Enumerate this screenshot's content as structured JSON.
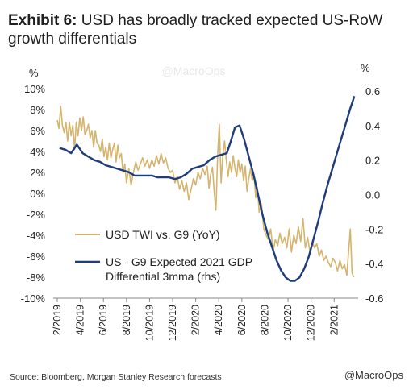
{
  "header": {
    "prefix": "Exhibit 6:",
    "title": "USD has broadly tracked expected US-RoW growth differentials"
  },
  "watermark": "@MacroOps",
  "footer": {
    "source": "Source: Bloomberg, Morgan Stanley Research forecasts",
    "handle": "@MacroOps"
  },
  "chart_data": {
    "type": "line",
    "y_left_unit": "%",
    "y_right_unit": "%",
    "y_left_ticks": [
      "10%",
      "8%",
      "6%",
      "4%",
      "2%",
      "0%",
      "-2%",
      "-4%",
      "-6%",
      "-8%",
      "-10%"
    ],
    "y_right_ticks": [
      "0.6",
      "0.4",
      "0.2",
      "0.0",
      "-0.2",
      "-0.4",
      "-0.6"
    ],
    "ylim_left": [
      -10,
      10
    ],
    "ylim_right": [
      -0.6,
      0.6
    ],
    "x_ticks": [
      "2/2019",
      "4/2019",
      "6/2019",
      "8/2019",
      "10/2019",
      "12/2019",
      "2/2020",
      "4/2020",
      "6/2020",
      "8/2020",
      "10/2020",
      "12/2020",
      "2/2021"
    ],
    "x_tick_months": [
      0,
      2,
      4,
      6,
      8,
      10,
      12,
      14,
      16,
      18,
      20,
      22,
      24
    ],
    "xlim_months": [
      0,
      25.8
    ],
    "grid": false,
    "legend_position": "bottom-left",
    "series": [
      {
        "name": "USD TWI vs. G9 (YoY)",
        "axis": "left",
        "color": "#d4b46e",
        "x_months": [
          0.0,
          0.15,
          0.3,
          0.45,
          0.6,
          0.75,
          0.9,
          1.05,
          1.2,
          1.35,
          1.5,
          1.65,
          1.8,
          1.95,
          2.1,
          2.25,
          2.4,
          2.55,
          2.7,
          2.85,
          3.0,
          3.15,
          3.3,
          3.45,
          3.6,
          3.75,
          3.9,
          4.05,
          4.2,
          4.35,
          4.5,
          4.65,
          4.8,
          4.95,
          5.1,
          5.25,
          5.4,
          5.55,
          5.7,
          5.85,
          6.0,
          6.2,
          6.4,
          6.6,
          6.8,
          7.0,
          7.2,
          7.4,
          7.6,
          7.8,
          8.0,
          8.2,
          8.4,
          8.6,
          8.8,
          9.0,
          9.2,
          9.4,
          9.6,
          9.8,
          10.0,
          10.2,
          10.4,
          10.6,
          10.8,
          11.0,
          11.2,
          11.4,
          11.6,
          11.8,
          12.0,
          12.2,
          12.4,
          12.6,
          12.8,
          13.0,
          13.15,
          13.3,
          13.45,
          13.6,
          13.75,
          13.9,
          14.05,
          14.2,
          14.35,
          14.5,
          14.65,
          14.8,
          14.95,
          15.1,
          15.25,
          15.4,
          15.55,
          15.7,
          15.85,
          16.0,
          16.15,
          16.3,
          16.45,
          16.6,
          16.75,
          16.9,
          17.05,
          17.2,
          17.35,
          17.5,
          17.7,
          17.9,
          18.1,
          18.3,
          18.5,
          18.7,
          18.9,
          19.1,
          19.3,
          19.5,
          19.7,
          19.9,
          20.1,
          20.3,
          20.5,
          20.7,
          20.9,
          21.1,
          21.3,
          21.5,
          21.7,
          21.9,
          22.1,
          22.3,
          22.5,
          22.7,
          22.9,
          23.1,
          23.3,
          23.5,
          23.7,
          23.9,
          24.1,
          24.3,
          24.5,
          24.7,
          24.9,
          25.1,
          25.25,
          25.4,
          25.55,
          25.7
        ],
        "values": [
          7.0,
          6.2,
          8.3,
          6.5,
          5.8,
          6.8,
          5.0,
          6.8,
          5.5,
          6.5,
          4.2,
          6.8,
          5.5,
          7.2,
          6.0,
          7.3,
          5.6,
          6.0,
          6.6,
          5.3,
          6.0,
          4.4,
          6.0,
          4.8,
          4.6,
          4.0,
          5.2,
          3.5,
          4.4,
          3.2,
          4.8,
          3.4,
          4.2,
          4.8,
          3.0,
          4.6,
          3.4,
          3.8,
          2.0,
          2.8,
          1.0,
          2.4,
          0.8,
          2.0,
          3.0,
          2.2,
          2.8,
          3.4,
          2.6,
          3.2,
          2.4,
          3.2,
          2.6,
          3.6,
          2.8,
          3.8,
          2.9,
          3.4,
          2.4,
          2.0,
          2.2,
          1.0,
          1.6,
          0.4,
          1.2,
          0.2,
          1.0,
          -0.6,
          0.4,
          1.4,
          0.8,
          2.0,
          1.4,
          2.4,
          1.8,
          2.6,
          0.5,
          1.8,
          2.5,
          0.2,
          -1.6,
          3.6,
          6.6,
          1.0,
          3.6,
          5.0,
          3.2,
          1.6,
          3.0,
          2.0,
          3.6,
          2.4,
          1.6,
          3.2,
          2.0,
          2.8,
          1.2,
          2.6,
          0.2,
          1.4,
          2.4,
          1.2,
          1.8,
          -0.4,
          0.6,
          -1.8,
          -1.0,
          -3.4,
          -4.0,
          -4.4,
          -3.4,
          -5.6,
          -4.4,
          -5.0,
          -3.8,
          -4.8,
          -4.2,
          -5.2,
          -3.4,
          -5.6,
          -4.0,
          -4.8,
          -3.2,
          -4.6,
          -2.4,
          -5.2,
          -4.2,
          -5.6,
          -4.6,
          -5.2,
          -4.8,
          -6.0,
          -5.4,
          -6.4,
          -6.0,
          -6.6,
          -7.0,
          -6.2,
          -6.6,
          -7.4,
          -6.4,
          -7.2,
          -6.8,
          -7.8,
          -5.6,
          -3.4,
          -7.6,
          -8.0
        ]
      },
      {
        "name": "US - G9 Expected 2021 GDP Differential 3mma (rhs)",
        "axis": "right",
        "color": "#1f3d7a",
        "x_months": [
          0.2,
          0.7,
          1.2,
          1.7,
          2.2,
          2.7,
          3.2,
          3.7,
          4.2,
          4.7,
          5.2,
          5.7,
          6.2,
          6.7,
          7.2,
          7.7,
          8.2,
          8.7,
          9.2,
          9.7,
          10.2,
          10.7,
          11.2,
          11.7,
          12.2,
          12.7,
          13.2,
          13.7,
          14.2,
          14.7,
          15.0,
          15.4,
          15.8,
          16.2,
          16.6,
          17.0,
          17.4,
          17.8,
          18.2,
          18.6,
          19.0,
          19.4,
          19.8,
          20.2,
          20.6,
          21.0,
          21.4,
          21.8,
          22.2,
          22.6,
          23.0,
          23.4,
          23.8,
          24.2,
          24.6,
          25.0,
          25.4,
          25.75
        ],
        "values": [
          0.27,
          0.26,
          0.24,
          0.29,
          0.24,
          0.22,
          0.2,
          0.19,
          0.17,
          0.16,
          0.15,
          0.14,
          0.13,
          0.11,
          0.11,
          0.11,
          0.11,
          0.1,
          0.1,
          0.1,
          0.09,
          0.1,
          0.12,
          0.15,
          0.16,
          0.17,
          0.2,
          0.22,
          0.23,
          0.24,
          0.3,
          0.39,
          0.4,
          0.32,
          0.22,
          0.12,
          0.0,
          -0.12,
          -0.22,
          -0.3,
          -0.38,
          -0.44,
          -0.48,
          -0.5,
          -0.5,
          -0.48,
          -0.43,
          -0.36,
          -0.26,
          -0.16,
          -0.05,
          0.05,
          0.14,
          0.23,
          0.32,
          0.41,
          0.5,
          0.57
        ]
      }
    ]
  }
}
